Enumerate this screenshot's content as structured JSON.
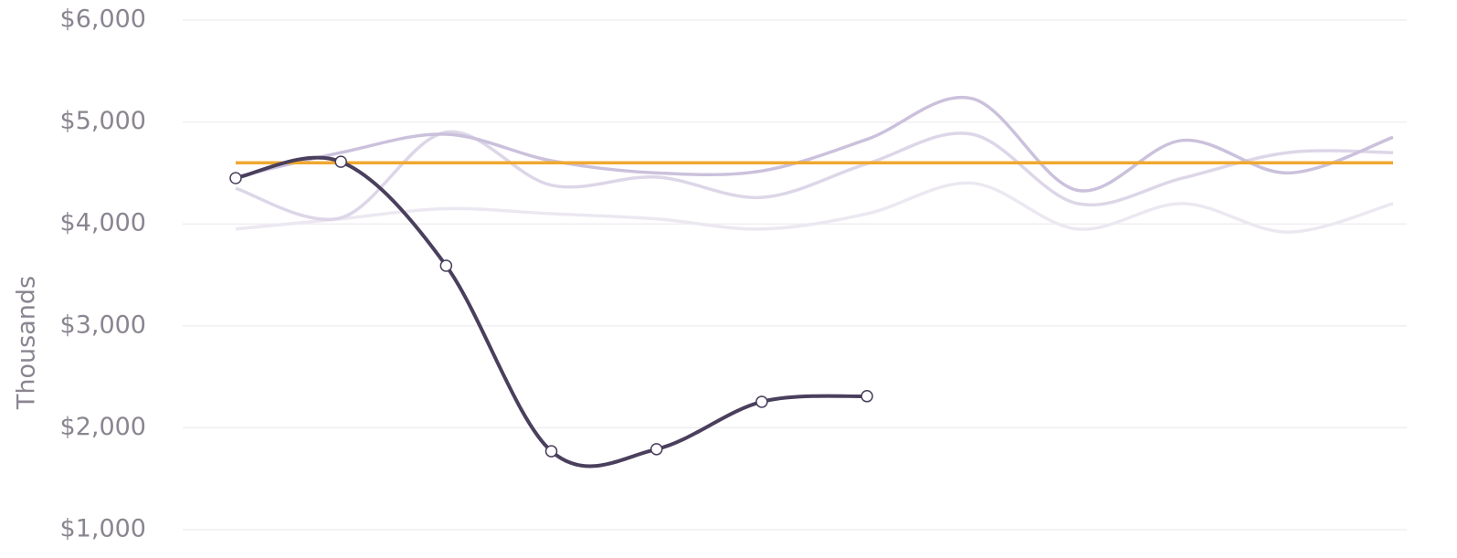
{
  "chart_data": {
    "type": "line",
    "y_axis_label": "Thousands",
    "categories": [
      null,
      null,
      null,
      null,
      null,
      null,
      null,
      null,
      null,
      null,
      null,
      null
    ],
    "ylim": [
      1000,
      6000
    ],
    "yticks": [
      {
        "value": 1000,
        "label": "$1,000"
      },
      {
        "value": 2000,
        "label": "$2,000"
      },
      {
        "value": 3000,
        "label": "$3,000"
      },
      {
        "value": 4000,
        "label": "$4,000"
      },
      {
        "value": 5000,
        "label": "$5,000"
      },
      {
        "value": 6000,
        "label": "$6,000"
      }
    ],
    "grid": true,
    "series": [
      {
        "color": "#ece8f1",
        "values": [
          3950,
          4050,
          4150,
          4100,
          4050,
          3950,
          4100,
          4400,
          3950,
          4200,
          3920,
          4200
        ]
      },
      {
        "color": "#ddd6e8",
        "values": [
          4350,
          4060,
          4900,
          4380,
          4460,
          4260,
          4590,
          4880,
          4200,
          4450,
          4700,
          4700
        ]
      },
      {
        "color": "#cbc1dc",
        "values": [
          4460,
          4700,
          4880,
          4620,
          4500,
          4520,
          4830,
          5230,
          4330,
          4820,
          4500,
          4850
        ]
      },
      {
        "color": "#f0a830",
        "values": [
          4600,
          4600,
          4600,
          4600,
          4600,
          4600,
          4600,
          4600,
          4600,
          4600,
          4600,
          4600
        ]
      },
      {
        "color": "#4a3f5c",
        "values": [
          4450,
          4610,
          3590,
          1770,
          1790,
          2255,
          2310,
          null,
          null,
          null,
          null,
          null
        ],
        "markers": true
      }
    ]
  }
}
